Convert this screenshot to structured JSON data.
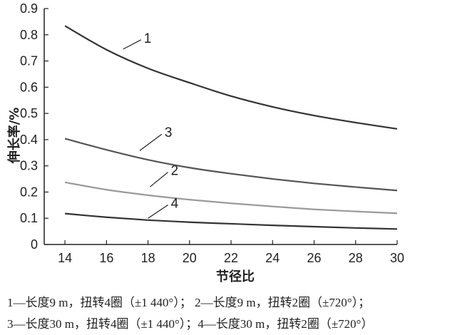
{
  "chart_data": {
    "type": "line",
    "xlabel": "节径比",
    "ylabel": "伸长率/%",
    "xlim": [
      13,
      30
    ],
    "ylim": [
      0,
      0.9
    ],
    "xticks": [
      14,
      16,
      18,
      20,
      22,
      24,
      26,
      28,
      30
    ],
    "yticks": [
      0,
      0.1,
      0.2,
      0.3,
      0.4,
      0.5,
      0.6,
      0.7,
      0.8,
      0.9
    ],
    "ytick_labels": [
      "0",
      "0.1",
      "0.2",
      "0.3",
      "0.4",
      "0.5",
      "0.6",
      "0.7",
      "0.8",
      "0.9"
    ],
    "grid": false,
    "x": [
      14,
      16,
      18,
      20,
      22,
      24,
      26,
      28,
      30
    ],
    "series": [
      {
        "name": "1",
        "color": "#333333",
        "values": [
          0.834,
          0.743,
          0.672,
          0.617,
          0.566,
          0.525,
          0.492,
          0.465,
          0.441
        ],
        "label_at": [
          17.8,
          0.77
        ],
        "leader_to": [
          16.8,
          0.745
        ]
      },
      {
        "name": "2",
        "color": "#9a9a9a",
        "values": [
          0.237,
          0.209,
          0.188,
          0.171,
          0.157,
          0.145,
          0.134,
          0.126,
          0.119
        ],
        "label_at": [
          19.1,
          0.265
        ],
        "leader_to": [
          18.1,
          0.22
        ]
      },
      {
        "name": "3",
        "color": "#555555",
        "values": [
          0.404,
          0.361,
          0.323,
          0.293,
          0.27,
          0.25,
          0.233,
          0.219,
          0.206
        ],
        "label_at": [
          18.8,
          0.41
        ],
        "leader_to": [
          17.6,
          0.358
        ]
      },
      {
        "name": "4",
        "color": "#333333",
        "values": [
          0.118,
          0.104,
          0.093,
          0.085,
          0.079,
          0.073,
          0.068,
          0.063,
          0.059
        ],
        "label_at": [
          19.1,
          0.14
        ],
        "leader_to": [
          18.0,
          0.1
        ]
      }
    ],
    "legend_lines": [
      "1—长度9 m，扭转4圈（±1 440°）；  2—长度9 m，扭转2圈（±720°）；",
      "3—长度30 m，扭转4圈（±1 440°）；4—长度30 m，扭转2圈（±720°）"
    ]
  }
}
